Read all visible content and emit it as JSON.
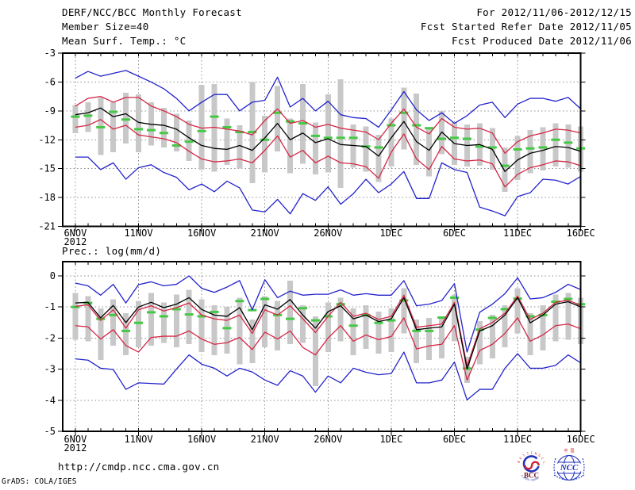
{
  "header": {
    "title": "DERF/NCC/BCC Monthly Forecast",
    "period": "For 2012/11/06-2012/12/15",
    "member_size": "Member Size=40",
    "refer_date": "Fcst Started Refer Date 2012/11/05",
    "produced_date": "Fcst Produced Date 2012/11/06"
  },
  "footer": {
    "url": "http://cmdp.ncc.cma.gov.cn",
    "credit": "GrADS: COLA/IGES",
    "logos": [
      {
        "name": "bcc-logo",
        "label": "BCC"
      },
      {
        "name": "ncc-logo",
        "label": "NCC"
      }
    ]
  },
  "colors": {
    "ensemble_mean": "#000000",
    "spread_band_line": "#d42846",
    "extreme_line": "#2323cc",
    "observation_dash": "#44c944",
    "member_bar": "#c8c8c8",
    "grid": "#909090",
    "frame": "#000000",
    "logo_red": "#cc2222",
    "logo_blue": "#2233bb"
  },
  "chart_data": [
    {
      "id": "temp",
      "type": "line",
      "title": "Mean Surf. Temp.: °C",
      "year_label": "2012",
      "x_tick_labels": [
        "6NOV",
        "11NOV",
        "16NOV",
        "21NOV",
        "26NOV",
        "1DEC",
        "6DEC",
        "11DEC",
        "16DEC"
      ],
      "x_tick_days": [
        0,
        5,
        10,
        15,
        20,
        25,
        30,
        35,
        40
      ],
      "n_days": 41,
      "ylim": [
        -21,
        -3
      ],
      "yticks": [
        -3,
        -6,
        -9,
        -12,
        -15,
        -18,
        -21
      ],
      "grid": true,
      "series": [
        {
          "name": "ensemble-max",
          "color_key": "extreme_line",
          "values": [
            -5.6,
            -4.9,
            -5.4,
            -5.1,
            -4.8,
            -5.4,
            -6.0,
            -6.7,
            -7.7,
            -9.0,
            -8.1,
            -7.3,
            -7.3,
            -9.0,
            -8.1,
            -7.9,
            -5.5,
            -8.6,
            -7.7,
            -9.0,
            -8.0,
            -9.4,
            -9.7,
            -9.8,
            -10.7,
            -8.9,
            -7.0,
            -8.9,
            -10.0,
            -9.2,
            -10.3,
            -9.5,
            -8.4,
            -8.1,
            -9.7,
            -8.3,
            -7.7,
            -7.7,
            -8.0,
            -7.6,
            -8.8
          ]
        },
        {
          "name": "upper-spread",
          "color_key": "spread_band_line",
          "values": [
            -8.5,
            -7.7,
            -7.5,
            -8.1,
            -7.6,
            -7.6,
            -8.5,
            -9.0,
            -9.6,
            -10.4,
            -10.8,
            -10.7,
            -10.9,
            -11.1,
            -11.5,
            -10.0,
            -8.8,
            -10.3,
            -10.0,
            -10.7,
            -10.4,
            -10.8,
            -11.0,
            -11.2,
            -12.0,
            -10.3,
            -8.8,
            -10.7,
            -11.4,
            -9.8,
            -10.7,
            -10.9,
            -10.8,
            -11.3,
            -13.4,
            -12.2,
            -11.6,
            -11.3,
            -10.9,
            -11.0,
            -11.3
          ]
        },
        {
          "name": "ensemble-mean",
          "color_key": "ensemble_mean",
          "values": [
            -9.4,
            -9.2,
            -8.7,
            -9.6,
            -9.3,
            -10.2,
            -10.4,
            -10.5,
            -10.9,
            -11.8,
            -12.6,
            -12.9,
            -13.0,
            -12.6,
            -13.1,
            -11.8,
            -10.3,
            -12.0,
            -11.3,
            -12.3,
            -11.9,
            -12.5,
            -12.6,
            -12.7,
            -13.7,
            -11.8,
            -10.1,
            -12.2,
            -13.1,
            -11.2,
            -12.4,
            -12.6,
            -12.5,
            -13.0,
            -15.3,
            -14.1,
            -13.4,
            -13.1,
            -12.7,
            -12.8,
            -13.2
          ]
        },
        {
          "name": "lower-spread",
          "color_key": "spread_band_line",
          "values": [
            -10.7,
            -10.5,
            -9.9,
            -10.9,
            -10.5,
            -11.5,
            -11.7,
            -11.9,
            -12.3,
            -13.2,
            -14.0,
            -14.3,
            -14.2,
            -14.0,
            -14.4,
            -13.1,
            -11.6,
            -13.8,
            -13.1,
            -14.4,
            -13.7,
            -14.4,
            -14.5,
            -14.8,
            -16.0,
            -13.3,
            -11.4,
            -14.0,
            -15.1,
            -12.7,
            -14.0,
            -14.2,
            -14.1,
            -14.5,
            -16.9,
            -15.6,
            -14.9,
            -14.6,
            -14.2,
            -14.3,
            -14.7
          ]
        },
        {
          "name": "ensemble-min",
          "color_key": "extreme_line",
          "values": [
            -13.8,
            -13.8,
            -15.1,
            -14.4,
            -16.1,
            -14.9,
            -14.6,
            -15.4,
            -15.9,
            -17.2,
            -16.6,
            -17.4,
            -16.3,
            -17.0,
            -19.3,
            -19.5,
            -18.2,
            -19.7,
            -17.6,
            -18.3,
            -16.9,
            -18.7,
            -17.6,
            -16.1,
            -17.5,
            -16.6,
            -15.3,
            -18.1,
            -18.1,
            -14.4,
            -15.1,
            -15.4,
            -19.0,
            -19.4,
            -19.9,
            -17.9,
            -17.5,
            -16.1,
            -16.2,
            -16.6,
            -15.8
          ]
        }
      ],
      "obs_dashes": [
        -9.6,
        -9.5,
        -10.7,
        -9.1,
        -9.9,
        -10.9,
        -11.0,
        -11.3,
        -12.6,
        -12.2,
        -11.1,
        -9.6,
        -10.7,
        -11.2,
        -11.2,
        -12.0,
        -9.2,
        -10.1,
        -10.3,
        -11.6,
        -11.8,
        -11.8,
        -11.8,
        -12.7,
        -12.8,
        -10.5,
        -9.2,
        -10.5,
        -10.8,
        -11.9,
        -11.8,
        -11.9,
        -12.7,
        -12.8,
        -14.7,
        -13.0,
        -12.9,
        -12.8,
        -12.0,
        -12.3,
        -12.9
      ],
      "bars": {
        "top": [
          -8.4,
          -8.1,
          -7.6,
          -8.1,
          -7.1,
          -7.3,
          -8.1,
          -8.7,
          -9.3,
          -10.0,
          -6.3,
          -6.2,
          -9.8,
          -10.5,
          -6.0,
          -9.5,
          -6.4,
          -9.8,
          -6.2,
          -10.2,
          -7.3,
          -5.7,
          -10.4,
          -10.6,
          -11.5,
          -9.8,
          -6.6,
          -7.2,
          -10.9,
          -9.0,
          -10.2,
          -10.4,
          -10.3,
          -10.8,
          -12.8,
          -11.6,
          -11.0,
          -10.7,
          -10.3,
          -10.4,
          -10.6
        ],
        "bottom": [
          -11.3,
          -11.2,
          -13.6,
          -13.3,
          -12.4,
          -13.3,
          -12.6,
          -12.8,
          -13.2,
          -14.2,
          -15.1,
          -15.3,
          -14.6,
          -15.0,
          -16.5,
          -15.4,
          -13.2,
          -15.5,
          -14.5,
          -15.6,
          -15.4,
          -17.0,
          -14.9,
          -15.3,
          -16.4,
          -14.8,
          -13.0,
          -14.6,
          -15.8,
          -13.5,
          -14.6,
          -14.8,
          -14.7,
          -15.1,
          -17.4,
          -16.2,
          -15.5,
          -15.2,
          -14.8,
          -14.9,
          -15.3
        ]
      }
    },
    {
      "id": "prec",
      "type": "line",
      "title": "Prec.: log(mm/d)",
      "year_label": "2012",
      "x_tick_labels": [
        "6NOV",
        "11NOV",
        "16NOV",
        "21NOV",
        "26NOV",
        "1DEC",
        "6DEC",
        "11DEC",
        "16DEC"
      ],
      "x_tick_days": [
        0,
        5,
        10,
        15,
        20,
        25,
        30,
        35,
        40
      ],
      "n_days": 41,
      "ylim": [
        -5,
        0
      ],
      "yticks": [
        0,
        -1,
        -2,
        -3,
        -4,
        -5
      ],
      "grid": true,
      "series": [
        {
          "name": "ensemble-max",
          "color_key": "extreme_line",
          "values": [
            -0.23,
            -0.32,
            -0.62,
            -0.27,
            -0.87,
            -0.28,
            -0.19,
            -0.32,
            -0.27,
            0.0,
            -0.4,
            -0.53,
            -0.36,
            -0.15,
            -1.09,
            -0.12,
            -0.7,
            -0.49,
            -0.62,
            -0.59,
            -0.59,
            -0.45,
            -0.62,
            -0.57,
            -0.62,
            -0.62,
            -0.15,
            -0.96,
            -0.91,
            -0.79,
            -0.25,
            -2.45,
            -1.17,
            -0.91,
            -0.57,
            -0.06,
            -0.74,
            -0.7,
            -0.53,
            -0.27,
            -0.44
          ]
        },
        {
          "name": "upper-spread",
          "color_key": "spread_band_line",
          "values": [
            -0.98,
            -0.93,
            -1.43,
            -1.09,
            -1.68,
            -1.09,
            -0.96,
            -1.13,
            -1.02,
            -0.87,
            -1.26,
            -1.38,
            -1.43,
            -1.26,
            -1.85,
            -1.09,
            -1.26,
            -0.96,
            -1.38,
            -1.82,
            -1.3,
            -0.85,
            -1.3,
            -1.2,
            -1.4,
            -1.3,
            -0.62,
            -1.65,
            -1.6,
            -1.55,
            -0.85,
            -2.9,
            -1.7,
            -1.5,
            -1.2,
            -0.65,
            -1.4,
            -1.2,
            -0.85,
            -0.78,
            -0.95
          ]
        },
        {
          "name": "ensemble-mean",
          "color_key": "ensemble_mean",
          "values": [
            -0.87,
            -0.85,
            -1.35,
            -0.95,
            -1.5,
            -1.0,
            -0.85,
            -1.02,
            -0.91,
            -0.7,
            -1.08,
            -1.26,
            -1.3,
            -1.02,
            -1.73,
            -0.93,
            -1.07,
            -0.76,
            -1.26,
            -1.68,
            -1.15,
            -0.96,
            -1.38,
            -1.26,
            -1.47,
            -1.38,
            -0.7,
            -1.73,
            -1.68,
            -1.64,
            -0.91,
            -3.0,
            -1.77,
            -1.6,
            -1.26,
            -0.7,
            -1.51,
            -1.26,
            -0.91,
            -0.83,
            -1.0
          ]
        },
        {
          "name": "lower-spread",
          "color_key": "spread_band_line",
          "values": [
            -1.6,
            -1.64,
            -2.03,
            -1.73,
            -2.24,
            -2.45,
            -1.98,
            -1.94,
            -1.94,
            -1.77,
            -2.03,
            -2.2,
            -2.15,
            -1.98,
            -2.37,
            -1.81,
            -2.03,
            -1.77,
            -2.3,
            -2.54,
            -2.0,
            -1.6,
            -2.1,
            -1.9,
            -2.05,
            -1.95,
            -1.35,
            -2.35,
            -2.25,
            -2.2,
            -1.6,
            -3.35,
            -2.4,
            -2.2,
            -1.85,
            -1.35,
            -2.1,
            -1.9,
            -1.6,
            -1.55,
            -1.7
          ]
        },
        {
          "name": "ensemble-min",
          "color_key": "extreme_line",
          "values": [
            -2.67,
            -2.71,
            -2.97,
            -3.01,
            -3.65,
            -3.44,
            -3.46,
            -3.48,
            -3.0,
            -2.54,
            -2.84,
            -2.97,
            -3.22,
            -2.97,
            -3.09,
            -3.35,
            -3.52,
            -3.05,
            -3.22,
            -3.74,
            -3.22,
            -3.44,
            -2.97,
            -3.1,
            -3.18,
            -3.14,
            -2.45,
            -3.44,
            -3.44,
            -3.35,
            -2.77,
            -3.99,
            -3.65,
            -3.65,
            -2.97,
            -2.5,
            -2.97,
            -2.97,
            -2.88,
            -2.54,
            -2.8
          ]
        }
      ],
      "obs_dashes": [
        -1.0,
        -0.87,
        -1.38,
        -1.26,
        -1.77,
        -1.51,
        -1.17,
        -1.3,
        -1.07,
        -1.24,
        -1.3,
        -1.16,
        -1.68,
        -0.81,
        -1.1,
        -0.74,
        -1.26,
        -1.38,
        -1.04,
        -1.43,
        -1.3,
        -0.91,
        -1.6,
        -1.26,
        -1.51,
        -1.43,
        -0.79,
        -1.77,
        -1.77,
        -1.34,
        -0.7,
        -2.98,
        -1.73,
        -1.35,
        -1.07,
        -0.73,
        -1.3,
        -1.26,
        -0.83,
        -0.74,
        -0.91
      ],
      "bars": {
        "top": [
          -0.55,
          -0.65,
          -1.05,
          -0.75,
          -1.2,
          -0.8,
          -0.55,
          -0.85,
          -0.6,
          -0.45,
          -0.75,
          -0.95,
          -1.0,
          -0.7,
          -1.4,
          -0.65,
          -0.8,
          -0.15,
          -0.95,
          -1.3,
          -0.85,
          -0.7,
          -1.05,
          -0.95,
          -1.15,
          -1.05,
          -0.4,
          -1.4,
          -1.35,
          -1.3,
          -0.6,
          -2.6,
          -1.45,
          -1.25,
          -0.95,
          -0.4,
          -1.2,
          -0.95,
          -0.6,
          -0.55,
          -0.7
        ],
        "bottom": [
          -2.05,
          -2.1,
          -2.7,
          -2.25,
          -2.55,
          -2.3,
          -2.25,
          -2.15,
          -2.3,
          -2.2,
          -2.45,
          -2.55,
          -2.5,
          -2.85,
          -2.8,
          -2.3,
          -2.4,
          -2.2,
          -2.15,
          -3.55,
          -2.45,
          -2.1,
          -2.55,
          -2.35,
          -2.5,
          -2.45,
          -1.85,
          -2.8,
          -2.7,
          -2.65,
          -2.1,
          -3.45,
          -2.85,
          -2.65,
          -2.3,
          -1.85,
          -2.55,
          -2.4,
          -2.1,
          -2.05,
          -2.2
        ]
      }
    }
  ]
}
